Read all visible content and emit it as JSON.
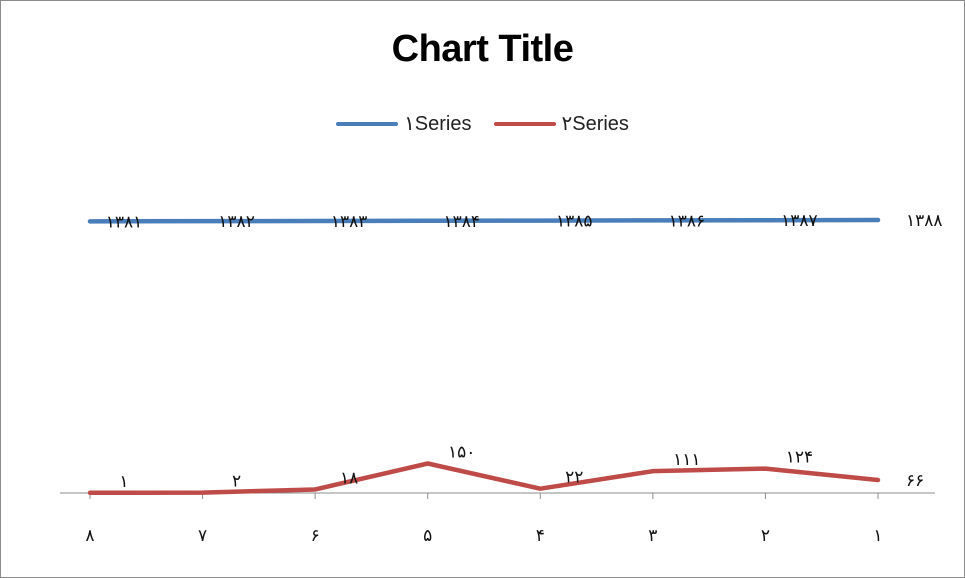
{
  "chart_data": {
    "type": "line",
    "title": "Chart Title",
    "categories": [
      "۸",
      "۷",
      "۶",
      "۵",
      "۴",
      "۳",
      "۲",
      "۱"
    ],
    "legend_position": "top",
    "grid": false,
    "series": [
      {
        "name": "۱Series",
        "color": "#4a7ebb",
        "values": [
          1381,
          1382,
          1383,
          1384,
          1385,
          1386,
          1387,
          1388
        ],
        "labels": [
          "۱۳۸۱",
          "۱۳۸۲",
          "۱۳۸۳",
          "۱۳۸۴",
          "۱۳۸۵",
          "۱۳۸۶",
          "۱۳۸۷",
          "۱۳۸۸"
        ]
      },
      {
        "name": "۲Series",
        "color": "#be4b48",
        "values": [
          1,
          2,
          18,
          150,
          22,
          111,
          124,
          66
        ],
        "labels": [
          "۱",
          "۲",
          "۱۸",
          "۱۵۰",
          "۲۲",
          "۱۱۱",
          "۱۲۴",
          "۶۶"
        ]
      }
    ]
  }
}
